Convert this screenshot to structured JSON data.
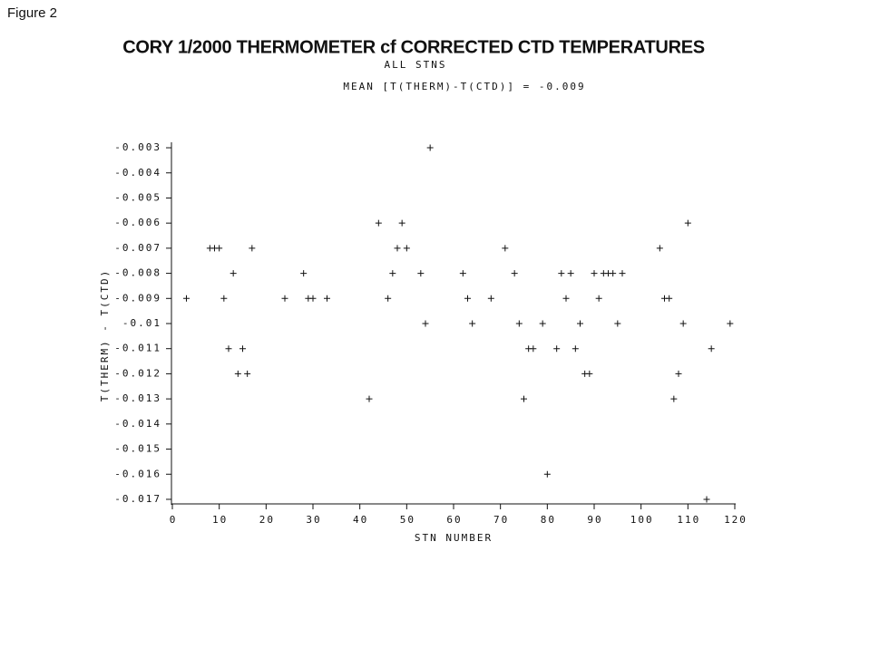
{
  "chart_data": {
    "type": "scatter",
    "figure_label": "Figure 2",
    "title": "CORY 1/2000 THERMOMETER cf CORRECTED CTD TEMPERATURES",
    "subtitle": "ALL STNS",
    "annotation": "MEAN [T(THERM)-T(CTD)] = -0.009",
    "x_label": "STN NUMBER",
    "y_label": "T(THERM) - T(CTD)",
    "color": "#111111",
    "xlim": [
      0,
      120
    ],
    "xticks": [
      0,
      10,
      20,
      30,
      40,
      50,
      60,
      70,
      80,
      90,
      100,
      110,
      120
    ],
    "ylim": [
      -0.0172,
      -0.0028
    ],
    "yticks": [
      -0.017,
      -0.016,
      -0.015,
      -0.014,
      -0.013,
      -0.012,
      -0.011,
      -0.01,
      -0.009,
      -0.008,
      -0.007,
      -0.006,
      -0.005,
      -0.004,
      -0.003
    ],
    "x": [
      3,
      8,
      9,
      10,
      11,
      12,
      13,
      14,
      15,
      16,
      17,
      24,
      28,
      29,
      30,
      33,
      42,
      44,
      46,
      47,
      48,
      49,
      50,
      53,
      54,
      55,
      62,
      63,
      64,
      68,
      71,
      73,
      74,
      75,
      76,
      77,
      79,
      80,
      82,
      83,
      84,
      85,
      86,
      87,
      88,
      89,
      90,
      91,
      92,
      93,
      94,
      95,
      96,
      104,
      105,
      106,
      107,
      108,
      109,
      110,
      114,
      115,
      119
    ],
    "values": [
      -0.009,
      -0.007,
      -0.007,
      -0.007,
      -0.009,
      -0.011,
      -0.008,
      -0.012,
      -0.011,
      -0.012,
      -0.007,
      -0.009,
      -0.008,
      -0.009,
      -0.009,
      -0.009,
      -0.013,
      -0.006,
      -0.009,
      -0.008,
      -0.007,
      -0.006,
      -0.007,
      -0.008,
      -0.01,
      -0.003,
      -0.008,
      -0.009,
      -0.01,
      -0.009,
      -0.007,
      -0.008,
      -0.01,
      -0.013,
      -0.011,
      -0.011,
      -0.01,
      -0.016,
      -0.011,
      -0.008,
      -0.009,
      -0.008,
      -0.011,
      -0.01,
      -0.012,
      -0.012,
      -0.008,
      -0.009,
      -0.008,
      -0.008,
      -0.008,
      -0.01,
      -0.008,
      -0.007,
      -0.009,
      -0.009,
      -0.013,
      -0.012,
      -0.01,
      -0.006,
      -0.017,
      -0.011,
      -0.01
    ]
  }
}
